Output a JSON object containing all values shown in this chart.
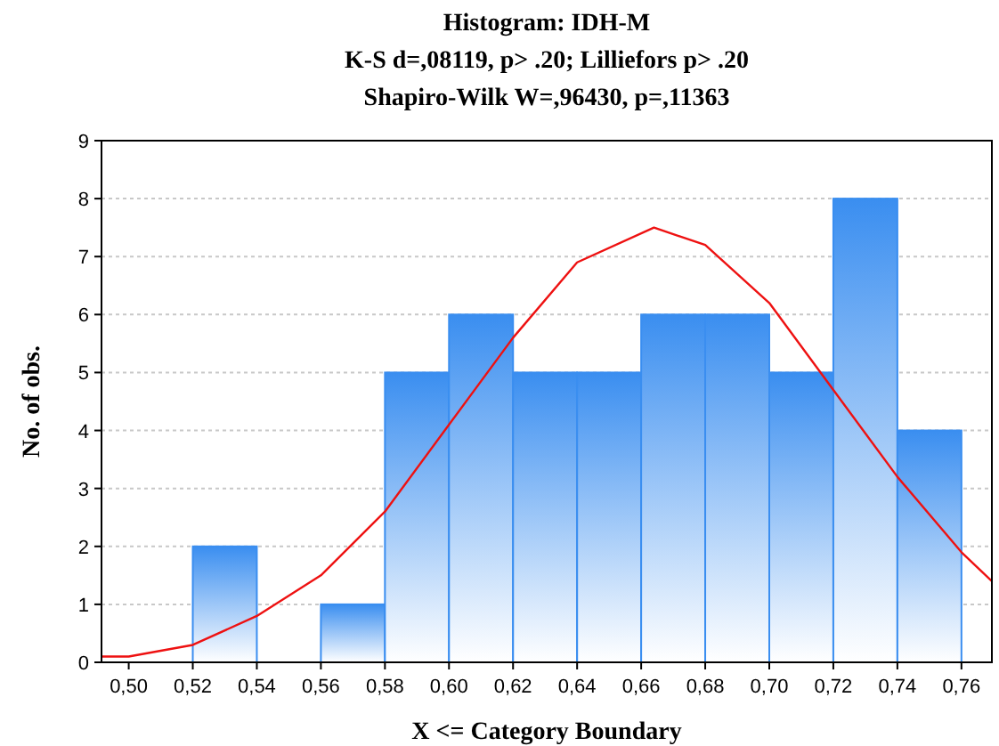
{
  "chart_data": {
    "type": "histogram",
    "title": "Histogram: IDH-M",
    "subtitle": "K-S d=,08119, p> .20; Lilliefors p> .20\nShapiro-Wilk W=,96430, p=,11363",
    "xlabel": "X <= Category Boundary",
    "ylabel": "No. of obs.",
    "bins": [
      0.52,
      0.54,
      0.56,
      0.58,
      0.6,
      0.62,
      0.64,
      0.66,
      0.68,
      0.7,
      0.72,
      0.74,
      0.76
    ],
    "values": [
      2,
      0,
      1,
      5,
      6,
      5,
      5,
      6,
      6,
      5,
      8,
      4
    ],
    "color": "#3a8ef0",
    "series": [
      {
        "type": "line",
        "color": "#ee1111",
        "x": [
          0.4915,
          0.5,
          0.52,
          0.54,
          0.56,
          0.58,
          0.6,
          0.62,
          0.64,
          0.664,
          0.68,
          0.7,
          0.72,
          0.74,
          0.76,
          0.7695
        ],
        "values": [
          0.1,
          0.1,
          0.3,
          0.8,
          1.5,
          2.6,
          4.1,
          5.6,
          6.9,
          7.5,
          7.2,
          6.2,
          4.7,
          3.2,
          1.9,
          1.4
        ]
      }
    ],
    "xlim": [
      0.4915,
      0.7695
    ],
    "xticks": [
      {
        "value": 0.5,
        "label": "0,50"
      },
      {
        "value": 0.52,
        "label": "0,52"
      },
      {
        "value": 0.54,
        "label": "0,54"
      },
      {
        "value": 0.56,
        "label": "0,56"
      },
      {
        "value": 0.58,
        "label": "0,58"
      },
      {
        "value": 0.6,
        "label": "0,60"
      },
      {
        "value": 0.62,
        "label": "0,62"
      },
      {
        "value": 0.64,
        "label": "0,64"
      },
      {
        "value": 0.66,
        "label": "0,66"
      },
      {
        "value": 0.68,
        "label": "0,68"
      },
      {
        "value": 0.7,
        "label": "0,70"
      },
      {
        "value": 0.72,
        "label": "0,72"
      },
      {
        "value": 0.74,
        "label": "0,74"
      },
      {
        "value": 0.76,
        "label": "0,76"
      }
    ],
    "ylim": [
      0,
      9
    ],
    "yticks": [
      0,
      1,
      2,
      3,
      4,
      5,
      6,
      7,
      8,
      9
    ],
    "grid": "y"
  }
}
